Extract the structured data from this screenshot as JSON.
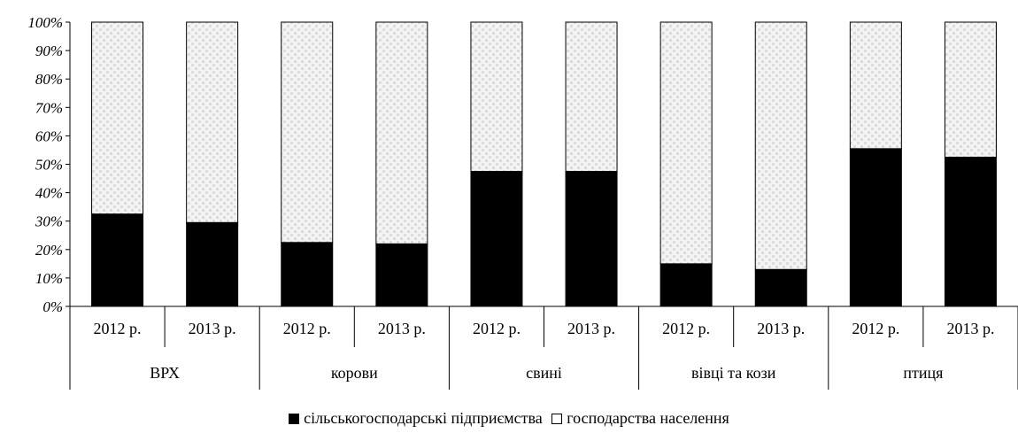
{
  "chart_data": {
    "type": "bar",
    "stacked": "percent",
    "groups": [
      "ВРХ",
      "корови",
      "свині",
      "вівці та кози",
      "птиця"
    ],
    "categories": [
      "2012 р.",
      "2013 р.",
      "2012 р.",
      "2013 р.",
      "2012 р.",
      "2013 р.",
      "2012 р.",
      "2013 р.",
      "2012 р.",
      "2013 р."
    ],
    "series": [
      {
        "name": "сільськогосподарські підприємства",
        "color": "#000000",
        "values": [
          32.5,
          29.5,
          22.5,
          22.0,
          47.5,
          47.5,
          15.0,
          13.0,
          55.5,
          52.5
        ]
      },
      {
        "name": "господарства населення",
        "color": "#f0f0f0",
        "pattern": "dotted",
        "values": [
          67.5,
          70.5,
          77.5,
          78.0,
          52.5,
          52.5,
          85.0,
          87.0,
          44.5,
          47.5
        ]
      }
    ],
    "yticks": [
      "0%",
      "10%",
      "20%",
      "30%",
      "40%",
      "50%",
      "60%",
      "70%",
      "80%",
      "90%",
      "100%"
    ],
    "ylim": [
      0,
      100
    ],
    "grid": false,
    "legend_position": "bottom-center"
  }
}
